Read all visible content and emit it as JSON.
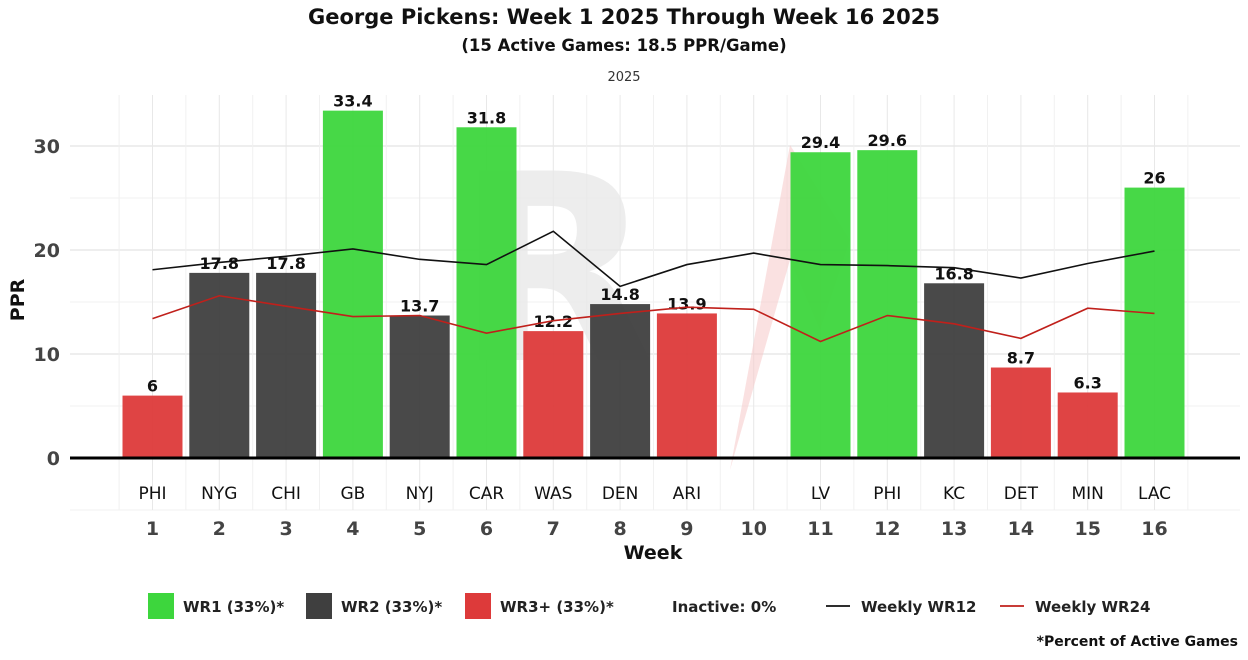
{
  "chart_data": {
    "type": "bar",
    "title": "George Pickens: Week 1 2025 Through Week 16 2025",
    "subtitle": "(15 Active Games: 18.5 PPR/Game)",
    "facet_label": "2025",
    "xlabel": "Week",
    "ylabel": "PPR",
    "ylim": [
      0,
      35
    ],
    "yticks": [
      0,
      10,
      20,
      30
    ],
    "weeks": [
      "1",
      "2",
      "3",
      "4",
      "5",
      "6",
      "7",
      "8",
      "9",
      "10",
      "11",
      "12",
      "13",
      "14",
      "15",
      "16"
    ],
    "opponents": [
      "PHI",
      "NYG",
      "CHI",
      "GB",
      "NYJ",
      "CAR",
      "WAS",
      "DEN",
      "ARI",
      "",
      "LV",
      "PHI",
      "KC",
      "DET",
      "MIN",
      "LAC"
    ],
    "values": [
      6,
      17.8,
      17.8,
      33.4,
      13.7,
      31.8,
      12.2,
      14.8,
      13.9,
      null,
      29.4,
      29.6,
      16.8,
      8.7,
      6.3,
      26
    ],
    "value_labels": [
      "6",
      "17.8",
      "17.8",
      "33.4",
      "13.7",
      "31.8",
      "12.2",
      "14.8",
      "13.9",
      "",
      "29.4",
      "29.6",
      "16.8",
      "8.7",
      "6.3",
      "26"
    ],
    "tiers": [
      "WR3+",
      "WR2",
      "WR2",
      "WR1",
      "WR2",
      "WR1",
      "WR3+",
      "WR2",
      "WR3+",
      null,
      "WR1",
      "WR1",
      "WR2",
      "WR3+",
      "WR3+",
      "WR1"
    ],
    "tier_colors": {
      "WR1": "#3dd63d",
      "WR2": "#3f3f3f",
      "WR3+": "#dd3a3a"
    },
    "lines": [
      {
        "name": "Weekly WR12",
        "color": "#111111",
        "values": [
          18.1,
          18.8,
          19.4,
          20.1,
          19.1,
          18.6,
          21.8,
          16.5,
          18.6,
          19.7,
          18.6,
          18.5,
          18.3,
          17.3,
          18.7,
          19.9
        ]
      },
      {
        "name": "Weekly WR24",
        "color": "#c0201b",
        "values": [
          13.4,
          15.6,
          14.6,
          13.6,
          13.7,
          12.0,
          13.2,
          13.9,
          14.5,
          14.3,
          11.2,
          13.7,
          12.9,
          11.5,
          14.4,
          13.9
        ]
      }
    ],
    "grid": true,
    "legend_position": "bottom",
    "legend": [
      {
        "label": "WR1 (33%)*",
        "kind": "box",
        "color": "#3dd63d"
      },
      {
        "label": "WR2 (33%)*",
        "kind": "box",
        "color": "#3f3f3f"
      },
      {
        "label": "WR3+ (33%)*",
        "kind": "box",
        "color": "#dd3a3a"
      },
      {
        "label": "Inactive: 0%",
        "kind": "text"
      },
      {
        "label": "Weekly WR12",
        "kind": "line",
        "color": "#111111"
      },
      {
        "label": "Weekly WR24",
        "kind": "line",
        "color": "#c0201b"
      }
    ],
    "footnote": "*Percent of Active Games"
  }
}
